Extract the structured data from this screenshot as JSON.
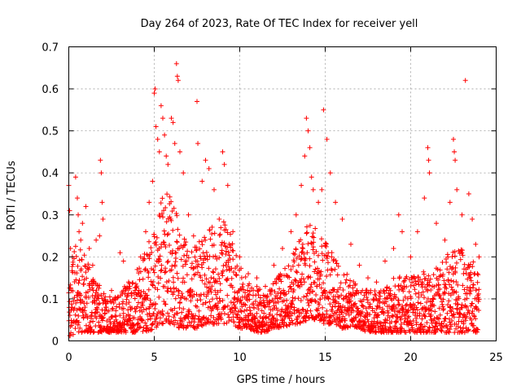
{
  "chart_data": {
    "type": "scatter",
    "title": "Day 264 of 2023, Rate Of TEC Index for receiver yell",
    "xlabel": "GPS time / hours",
    "ylabel": "ROTI / TECUs",
    "xlim": [
      0,
      25
    ],
    "ylim": [
      0,
      0.7
    ],
    "xticks": [
      "0",
      "5",
      "10",
      "15",
      "20",
      "25"
    ],
    "yticks": [
      "0",
      "0.1",
      "0.2",
      "0.3",
      "0.4",
      "0.5",
      "0.6",
      "0.7"
    ],
    "grid": true,
    "marker": "+",
    "color": "#ff0000",
    "series": [
      {
        "name": "ROTI",
        "points": [
          [
            0.0,
            0.37
          ],
          [
            0.05,
            0.31
          ],
          [
            0.1,
            0.22
          ],
          [
            0.15,
            0.12
          ],
          [
            0.2,
            0.08
          ],
          [
            0.4,
            0.39
          ],
          [
            0.5,
            0.34
          ],
          [
            0.55,
            0.3
          ],
          [
            0.6,
            0.26
          ],
          [
            0.7,
            0.24
          ],
          [
            0.8,
            0.28
          ],
          [
            1.0,
            0.32
          ],
          [
            1.2,
            0.22
          ],
          [
            1.4,
            0.18
          ],
          [
            1.6,
            0.24
          ],
          [
            1.8,
            0.25
          ],
          [
            1.85,
            0.43
          ],
          [
            1.9,
            0.4
          ],
          [
            1.95,
            0.33
          ],
          [
            2.0,
            0.29
          ],
          [
            2.5,
            0.12
          ],
          [
            3.0,
            0.21
          ],
          [
            3.2,
            0.19
          ],
          [
            3.5,
            0.14
          ],
          [
            4.0,
            0.17
          ],
          [
            4.2,
            0.2
          ],
          [
            4.5,
            0.26
          ],
          [
            4.7,
            0.33
          ],
          [
            4.9,
            0.38
          ],
          [
            5.0,
            0.59
          ],
          [
            5.05,
            0.6
          ],
          [
            5.1,
            0.51
          ],
          [
            5.2,
            0.48
          ],
          [
            5.3,
            0.45
          ],
          [
            5.4,
            0.56
          ],
          [
            5.5,
            0.53
          ],
          [
            5.6,
            0.49
          ],
          [
            5.7,
            0.44
          ],
          [
            5.8,
            0.42
          ],
          [
            6.0,
            0.53
          ],
          [
            6.1,
            0.52
          ],
          [
            6.2,
            0.47
          ],
          [
            6.3,
            0.66
          ],
          [
            6.35,
            0.63
          ],
          [
            6.4,
            0.62
          ],
          [
            6.5,
            0.45
          ],
          [
            6.7,
            0.4
          ],
          [
            7.0,
            0.3
          ],
          [
            7.3,
            0.25
          ],
          [
            7.5,
            0.57
          ],
          [
            7.55,
            0.47
          ],
          [
            7.8,
            0.38
          ],
          [
            8.0,
            0.43
          ],
          [
            8.2,
            0.41
          ],
          [
            8.5,
            0.36
          ],
          [
            8.8,
            0.29
          ],
          [
            9.0,
            0.45
          ],
          [
            9.1,
            0.42
          ],
          [
            9.3,
            0.37
          ],
          [
            9.6,
            0.26
          ],
          [
            10.0,
            0.2
          ],
          [
            10.5,
            0.16
          ],
          [
            11.0,
            0.15
          ],
          [
            11.5,
            0.13
          ],
          [
            12.0,
            0.18
          ],
          [
            12.5,
            0.22
          ],
          [
            13.0,
            0.26
          ],
          [
            13.3,
            0.3
          ],
          [
            13.6,
            0.37
          ],
          [
            13.8,
            0.44
          ],
          [
            13.9,
            0.53
          ],
          [
            14.0,
            0.5
          ],
          [
            14.1,
            0.46
          ],
          [
            14.2,
            0.39
          ],
          [
            14.3,
            0.36
          ],
          [
            14.6,
            0.33
          ],
          [
            14.8,
            0.36
          ],
          [
            14.9,
            0.55
          ],
          [
            15.1,
            0.48
          ],
          [
            15.3,
            0.4
          ],
          [
            15.6,
            0.33
          ],
          [
            16.0,
            0.29
          ],
          [
            16.5,
            0.23
          ],
          [
            17.0,
            0.18
          ],
          [
            17.5,
            0.15
          ],
          [
            18.0,
            0.14
          ],
          [
            18.5,
            0.19
          ],
          [
            19.0,
            0.22
          ],
          [
            19.3,
            0.3
          ],
          [
            19.5,
            0.26
          ],
          [
            20.0,
            0.2
          ],
          [
            20.4,
            0.26
          ],
          [
            20.8,
            0.34
          ],
          [
            21.0,
            0.46
          ],
          [
            21.05,
            0.43
          ],
          [
            21.1,
            0.4
          ],
          [
            21.5,
            0.28
          ],
          [
            22.0,
            0.24
          ],
          [
            22.3,
            0.33
          ],
          [
            22.5,
            0.48
          ],
          [
            22.55,
            0.45
          ],
          [
            22.6,
            0.43
          ],
          [
            22.7,
            0.36
          ],
          [
            23.0,
            0.3
          ],
          [
            23.2,
            0.62
          ],
          [
            23.4,
            0.35
          ],
          [
            23.6,
            0.29
          ],
          [
            23.8,
            0.23
          ],
          [
            24.0,
            0.2
          ]
        ],
        "envelope": {
          "x": [
            0,
            0.5,
            1,
            1.5,
            2,
            2.5,
            3,
            3.5,
            4,
            4.5,
            5,
            5.5,
            6,
            6.5,
            7,
            7.5,
            8,
            8.5,
            9,
            9.5,
            10,
            10.5,
            11,
            11.5,
            12,
            12.5,
            13,
            13.5,
            14,
            14.5,
            15,
            15.5,
            16,
            16.5,
            17,
            17.5,
            18,
            18.5,
            19,
            19.5,
            20,
            20.5,
            21,
            21.5,
            22,
            22.5,
            23,
            23.5,
            24
          ],
          "low": [
            0.01,
            0.02,
            0.02,
            0.02,
            0.02,
            0.02,
            0.02,
            0.02,
            0.02,
            0.02,
            0.03,
            0.04,
            0.04,
            0.03,
            0.03,
            0.03,
            0.04,
            0.04,
            0.04,
            0.04,
            0.03,
            0.03,
            0.02,
            0.02,
            0.03,
            0.03,
            0.04,
            0.04,
            0.05,
            0.05,
            0.04,
            0.04,
            0.03,
            0.03,
            0.03,
            0.02,
            0.02,
            0.02,
            0.02,
            0.02,
            0.02,
            0.02,
            0.02,
            0.02,
            0.02,
            0.02,
            0.02,
            0.02,
            0.02
          ],
          "high": [
            0.18,
            0.24,
            0.2,
            0.14,
            0.13,
            0.1,
            0.12,
            0.14,
            0.16,
            0.22,
            0.3,
            0.36,
            0.34,
            0.28,
            0.22,
            0.24,
            0.26,
            0.28,
            0.3,
            0.25,
            0.18,
            0.14,
            0.13,
            0.12,
            0.14,
            0.17,
            0.2,
            0.25,
            0.28,
            0.27,
            0.25,
            0.2,
            0.17,
            0.15,
            0.13,
            0.12,
            0.12,
            0.13,
            0.15,
            0.16,
            0.15,
            0.16,
            0.17,
            0.18,
            0.2,
            0.22,
            0.22,
            0.2,
            0.18
          ]
        }
      }
    ]
  }
}
